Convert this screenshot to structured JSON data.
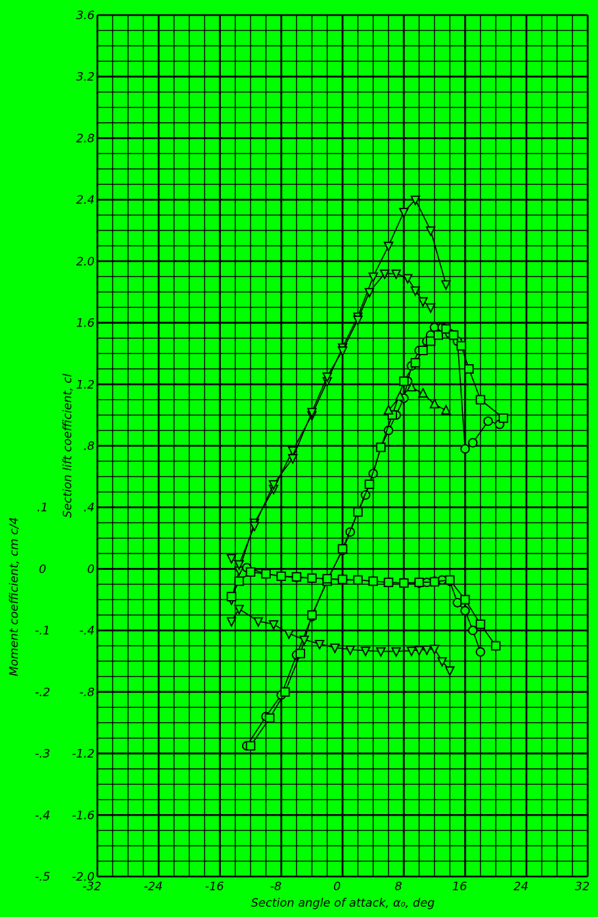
{
  "colors": {
    "background": "#00ff00",
    "ink": "#000000"
  },
  "chart_data": {
    "type": "scatter",
    "xlabel": "Section angle of attack, α₀, deg",
    "ylabel": "Section lift coefficient, cl",
    "y2label": "Moment coefficient, cm c/4",
    "xlim": [
      -32,
      32
    ],
    "ylim": [
      -2.0,
      3.6
    ],
    "y2lim": [
      -0.5,
      0.1
    ],
    "x_ticks": [
      "-32",
      "-24",
      "-16",
      "-8",
      "0",
      "8",
      "16",
      "24",
      "32"
    ],
    "y_ticks": [
      "-2.0",
      "-1.6",
      "-1.2",
      "-.8",
      "-.4",
      "0",
      ".4",
      ".8",
      "1.2",
      "1.6",
      "2.0",
      "2.4",
      "2.8",
      "3.2",
      "3.6"
    ],
    "y2_ticks": [
      "-.5",
      "-.4",
      "-.3",
      "-.2",
      "-.1",
      "0",
      ".1"
    ],
    "grid": true,
    "legend": "none",
    "series": [
      {
        "axis": "lift",
        "marker": "triangle-down",
        "line": "solid",
        "points": [
          [
            -14.5,
            -0.2
          ],
          [
            -13.5,
            -0.01
          ],
          [
            -11.5,
            0.3
          ],
          [
            -9,
            0.52
          ],
          [
            -6.5,
            0.77
          ],
          [
            -4,
            1.0
          ],
          [
            -2,
            1.22
          ],
          [
            0,
            1.44
          ],
          [
            2,
            1.64
          ],
          [
            4,
            1.9
          ],
          [
            6,
            2.1
          ],
          [
            8,
            2.32
          ],
          [
            9.5,
            2.4
          ],
          [
            11.5,
            2.2
          ],
          [
            13.5,
            1.85
          ]
        ]
      },
      {
        "axis": "lift",
        "marker": "triangle-down",
        "line": "solid",
        "points": [
          [
            -14.5,
            0.07
          ],
          [
            -13.5,
            0.03
          ],
          [
            -11.5,
            0.28
          ],
          [
            -9,
            0.55
          ],
          [
            -6.5,
            0.72
          ],
          [
            -4,
            1.02
          ],
          [
            -2,
            1.25
          ],
          [
            0,
            1.42
          ],
          [
            2,
            1.62
          ],
          [
            3.5,
            1.8
          ],
          [
            5.5,
            1.92
          ],
          [
            7,
            1.92
          ],
          [
            8.5,
            1.89
          ],
          [
            9.5,
            1.81
          ],
          [
            10.5,
            1.74
          ],
          [
            11.5,
            1.7
          ]
        ]
      },
      {
        "axis": "lift",
        "marker": "circle",
        "line": "solid",
        "points": [
          [
            -12.5,
            -1.15
          ],
          [
            -10,
            -0.96
          ],
          [
            -8,
            -0.82
          ],
          [
            -6,
            -0.56
          ],
          [
            -4,
            -0.31
          ],
          [
            -2,
            -0.07
          ],
          [
            0,
            0.12
          ],
          [
            1,
            0.24
          ],
          [
            2,
            0.37
          ],
          [
            3,
            0.48
          ],
          [
            4,
            0.62
          ],
          [
            5,
            0.79
          ],
          [
            6,
            0.9
          ],
          [
            7,
            1.0
          ],
          [
            8,
            1.11
          ],
          [
            8.5,
            1.22
          ],
          [
            9,
            1.32
          ],
          [
            10,
            1.42
          ],
          [
            11,
            1.48
          ],
          [
            11.5,
            1.52
          ],
          [
            12,
            1.57
          ],
          [
            13,
            1.57
          ],
          [
            14,
            1.53
          ],
          [
            15,
            1.48
          ],
          [
            16,
            0.78
          ],
          [
            17,
            0.82
          ],
          [
            19,
            0.96
          ],
          [
            20.5,
            0.94
          ]
        ]
      },
      {
        "axis": "lift",
        "marker": "square",
        "line": "solid",
        "points": [
          [
            -12,
            -1.15
          ],
          [
            -9.5,
            -0.97
          ],
          [
            -7.5,
            -0.8
          ],
          [
            -5.5,
            -0.55
          ],
          [
            -4,
            -0.3
          ],
          [
            -2,
            -0.08
          ],
          [
            0,
            0.13
          ],
          [
            2,
            0.37
          ],
          [
            3.5,
            0.55
          ],
          [
            5,
            0.79
          ],
          [
            6.5,
            1.0
          ],
          [
            8,
            1.22
          ],
          [
            9.5,
            1.34
          ],
          [
            10.5,
            1.42
          ],
          [
            11.5,
            1.48
          ],
          [
            12.5,
            1.52
          ],
          [
            13.5,
            1.56
          ],
          [
            14.5,
            1.52
          ],
          [
            15.5,
            1.45
          ],
          [
            16.5,
            1.3
          ],
          [
            18,
            1.1
          ],
          [
            21,
            0.98
          ]
        ]
      },
      {
        "axis": "lift",
        "marker": "triangle-up",
        "line": "solid",
        "points": [
          [
            6,
            1.03
          ],
          [
            7.5,
            1.12
          ],
          [
            9,
            1.18
          ],
          [
            10.5,
            1.14
          ],
          [
            12,
            1.07
          ],
          [
            13.5,
            1.03
          ]
        ]
      },
      {
        "axis": "moment",
        "marker": "circle",
        "line": "solid",
        "points": [
          [
            -12.5,
            0.002
          ],
          [
            -10,
            -0.008
          ],
          [
            -8,
            -0.012
          ],
          [
            -6,
            -0.014
          ],
          [
            -4,
            -0.015
          ],
          [
            -2,
            -0.016
          ],
          [
            0,
            -0.018
          ],
          [
            2,
            -0.018
          ],
          [
            4,
            -0.02
          ],
          [
            6,
            -0.022
          ],
          [
            8,
            -0.023
          ],
          [
            10,
            -0.023
          ],
          [
            11,
            -0.022
          ],
          [
            12,
            -0.02
          ],
          [
            13,
            -0.018
          ],
          [
            14,
            -0.02
          ],
          [
            15,
            -0.055
          ],
          [
            16,
            -0.068
          ],
          [
            17,
            -0.1
          ],
          [
            18,
            -0.135
          ]
        ]
      },
      {
        "axis": "moment",
        "marker": "square",
        "line": "solid",
        "points": [
          [
            -14.5,
            -0.045
          ],
          [
            -13.5,
            -0.02
          ],
          [
            -12,
            -0.005
          ],
          [
            -10,
            -0.008
          ],
          [
            -8,
            -0.012
          ],
          [
            -6,
            -0.013
          ],
          [
            -4,
            -0.015
          ],
          [
            -2,
            -0.016
          ],
          [
            0,
            -0.017
          ],
          [
            2,
            -0.018
          ],
          [
            4,
            -0.02
          ],
          [
            6,
            -0.022
          ],
          [
            8,
            -0.023
          ],
          [
            10,
            -0.022
          ],
          [
            12,
            -0.021
          ],
          [
            14,
            -0.018
          ],
          [
            16,
            -0.05
          ],
          [
            18,
            -0.09
          ],
          [
            20,
            -0.125
          ]
        ]
      },
      {
        "axis": "moment",
        "marker": "triangle-down",
        "line": "solid",
        "points": [
          [
            -14.5,
            -0.085
          ],
          [
            -13.5,
            -0.065
          ],
          [
            -11,
            -0.085
          ],
          [
            -9,
            -0.09
          ],
          [
            -7,
            -0.105
          ],
          [
            -5,
            -0.115
          ],
          [
            -3,
            -0.122
          ],
          [
            -1,
            -0.128
          ],
          [
            1,
            -0.131
          ],
          [
            3,
            -0.133
          ],
          [
            5,
            -0.134
          ],
          [
            7,
            -0.134
          ],
          [
            9,
            -0.133
          ],
          [
            10,
            -0.132
          ],
          [
            11,
            -0.131
          ],
          [
            12,
            -0.13
          ],
          [
            13,
            -0.15
          ],
          [
            14,
            -0.165
          ]
        ]
      }
    ]
  }
}
